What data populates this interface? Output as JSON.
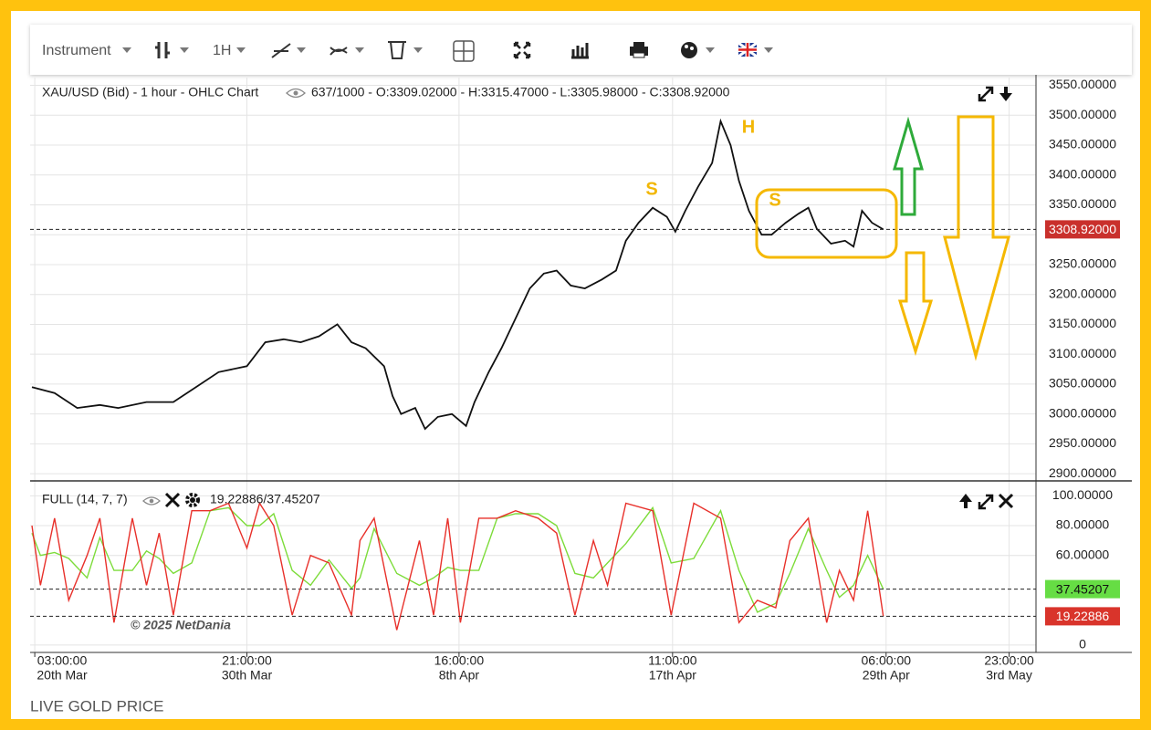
{
  "toolbar": {
    "instrument": "Instrument",
    "interval": "1H"
  },
  "footer": "LIVE GOLD PRICE",
  "watermark": "© 2025 NetDania",
  "chart_data": [
    {
      "type": "line",
      "title": "XAU/USD (Bid) - 1 hour - OHLC Chart",
      "subtitle": "637/1000 - O:3309.02000 - H:3315.47000 - L:3305.98000 - C:3308.92000",
      "annotations": [
        "S",
        "H",
        "S"
      ],
      "x": [
        0,
        16,
        32,
        48,
        61,
        81,
        100,
        116,
        132,
        152,
        165,
        178,
        190,
        203,
        216,
        226,
        236,
        249,
        255,
        261,
        271,
        278,
        287,
        297,
        307,
        313,
        323,
        332,
        342,
        352,
        362,
        371,
        381,
        391,
        403,
        413,
        420,
        429,
        439,
        449,
        455,
        462,
        471,
        481,
        487,
        494,
        500,
        507,
        516,
        523,
        533,
        542,
        549,
        555,
        565,
        575,
        581,
        587,
        594,
        602
      ],
      "series": [
        {
          "color": "#111111",
          "last_label": "3308.92000",
          "last_color": "#c9302c",
          "values": [
            3045,
            3035,
            3010,
            3015,
            3010,
            3020,
            3020,
            3045,
            3070,
            3080,
            3120,
            3125,
            3120,
            3130,
            3150,
            3120,
            3110,
            3080,
            3030,
            3000,
            3010,
            2975,
            2995,
            3000,
            2980,
            3020,
            3070,
            3110,
            3160,
            3210,
            3235,
            3240,
            3215,
            3210,
            3225,
            3240,
            3290,
            3320,
            3345,
            3330,
            3305,
            3340,
            3380,
            3420,
            3490,
            3450,
            3390,
            3340,
            3300,
            3300,
            3320,
            3335,
            3345,
            3310,
            3285,
            3290,
            3280,
            3340,
            3320,
            3308.92
          ]
        }
      ],
      "xlim": [
        0,
        710
      ],
      "xticks": [
        {
          "value": 2,
          "label": "03:00:00"
        },
        {
          "value": 152,
          "label": "21:00:00"
        },
        {
          "value": 302,
          "label": "16:00:00"
        },
        {
          "value": 453,
          "label": "11:00:00"
        },
        {
          "value": 604,
          "label": "06:00:00"
        },
        {
          "value": 691,
          "label": "23:00:00"
        }
      ],
      "xtick_dates": [
        "20th Mar",
        "30th Mar",
        "8th Apr",
        "17th Apr",
        "29th Apr",
        "3rd May"
      ],
      "ylim": [
        2888,
        3563
      ],
      "yticks": [
        {
          "value": 2900,
          "label": "2900.00000"
        },
        {
          "value": 2950,
          "label": "2950.00000"
        },
        {
          "value": 3000,
          "label": "3000.00000"
        },
        {
          "value": 3050,
          "label": "3050.00000"
        },
        {
          "value": 3100,
          "label": "3100.00000"
        },
        {
          "value": 3150,
          "label": "3150.00000"
        },
        {
          "value": 3200,
          "label": "3200.00000"
        },
        {
          "value": 3250,
          "label": "3250.00000"
        },
        {
          "value": 3300,
          "label": "3300.00000"
        },
        {
          "value": 3350,
          "label": "3350.00000"
        },
        {
          "value": 3400,
          "label": "3400.00000"
        },
        {
          "value": 3450,
          "label": "3450.00000"
        },
        {
          "value": 3500,
          "label": "3500.00000"
        },
        {
          "value": 3550,
          "label": "3550.00000"
        }
      ],
      "grid": true
    },
    {
      "type": "line",
      "title": "FULL (14, 7, 7)",
      "subtitle": "19.22886/37.45207",
      "x": [
        0,
        6,
        16,
        26,
        39,
        48,
        58,
        71,
        81,
        90,
        100,
        113,
        126,
        139,
        152,
        161,
        171,
        184,
        197,
        210,
        226,
        232,
        242,
        258,
        274,
        284,
        294,
        303,
        316,
        329,
        342,
        358,
        371,
        384,
        397,
        407,
        420,
        439,
        452,
        468,
        487,
        500,
        513,
        526,
        536,
        549,
        562,
        571,
        581,
        591,
        602
      ],
      "series": [
        {
          "color": "#7ddc3a",
          "last_label": "37.45207",
          "last_color": "#66dd44",
          "values": [
            75,
            60,
            62,
            58,
            45,
            72,
            50,
            50,
            63,
            58,
            48,
            55,
            90,
            92,
            80,
            80,
            88,
            50,
            40,
            57,
            38,
            45,
            78,
            48,
            40,
            45,
            52,
            50,
            50,
            85,
            88,
            88,
            80,
            48,
            45,
            55,
            68,
            92,
            55,
            58,
            90,
            50,
            22,
            28,
            48,
            78,
            50,
            32,
            40,
            60,
            37.45207
          ]
        },
        {
          "color": "#e8302a",
          "last_label": "19.22886",
          "last_color": "#d9342b",
          "values": [
            80,
            40,
            85,
            30,
            60,
            85,
            15,
            85,
            40,
            75,
            20,
            90,
            90,
            95,
            65,
            95,
            80,
            20,
            60,
            55,
            20,
            70,
            85,
            10,
            70,
            20,
            85,
            15,
            85,
            85,
            90,
            85,
            75,
            20,
            70,
            40,
            95,
            90,
            20,
            95,
            85,
            15,
            30,
            25,
            70,
            85,
            15,
            50,
            30,
            90,
            19.22886
          ]
        }
      ],
      "xlim": [
        0,
        710
      ],
      "ylim": [
        -5,
        110
      ],
      "yticks": [
        0,
        {
          "value": 60,
          "label": "60.00000"
        },
        {
          "value": 80,
          "label": "80.00000"
        },
        {
          "value": 100,
          "label": "100.00000"
        }
      ],
      "grid": true
    }
  ]
}
